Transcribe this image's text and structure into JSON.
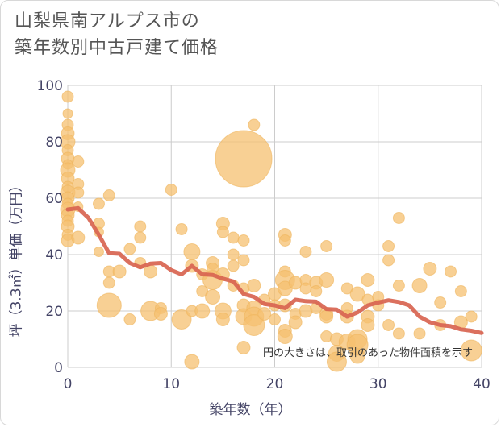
{
  "title_line1": "山梨県南アルプス市の",
  "title_line2": "築年数別中古戸建て価格",
  "chart_data": {
    "type": "scatter",
    "xlabel": "築年数（年）",
    "ylabel": "坪（3.3㎡）単価（万円）",
    "xlim": [
      0,
      40
    ],
    "ylim": [
      0,
      100
    ],
    "xticks": [
      0,
      10,
      20,
      30,
      40
    ],
    "yticks": [
      0,
      20,
      40,
      60,
      80,
      100
    ],
    "grid": true,
    "annotation": "円の大きさは、取引のあった物件面積を示す",
    "colors": {
      "points": "#f5c070",
      "trend": "#d86450",
      "grid": "#cccccc"
    },
    "points": [
      {
        "x": 0,
        "y": 96,
        "s": 7
      },
      {
        "x": 0,
        "y": 90,
        "s": 6
      },
      {
        "x": 0,
        "y": 86,
        "s": 7
      },
      {
        "x": 0,
        "y": 83,
        "s": 8
      },
      {
        "x": 0,
        "y": 80,
        "s": 9
      },
      {
        "x": 0,
        "y": 77,
        "s": 7
      },
      {
        "x": 0,
        "y": 74,
        "s": 8
      },
      {
        "x": 0,
        "y": 72,
        "s": 6
      },
      {
        "x": 0,
        "y": 70,
        "s": 9
      },
      {
        "x": 0,
        "y": 67,
        "s": 8
      },
      {
        "x": 0,
        "y": 64,
        "s": 7
      },
      {
        "x": 0,
        "y": 62,
        "s": 9
      },
      {
        "x": 0,
        "y": 60,
        "s": 8
      },
      {
        "x": 0,
        "y": 58,
        "s": 7
      },
      {
        "x": 0,
        "y": 56,
        "s": 9
      },
      {
        "x": 0,
        "y": 54,
        "s": 8
      },
      {
        "x": 0,
        "y": 52,
        "s": 7
      },
      {
        "x": 0,
        "y": 50,
        "s": 8
      },
      {
        "x": 0,
        "y": 47,
        "s": 7
      },
      {
        "x": 0,
        "y": 45,
        "s": 8
      },
      {
        "x": 1,
        "y": 73,
        "s": 7
      },
      {
        "x": 1,
        "y": 65,
        "s": 7
      },
      {
        "x": 1,
        "y": 62,
        "s": 7
      },
      {
        "x": 1,
        "y": 57,
        "s": 6
      },
      {
        "x": 1,
        "y": 46,
        "s": 8
      },
      {
        "x": 3,
        "y": 58,
        "s": 7
      },
      {
        "x": 3,
        "y": 51,
        "s": 7
      },
      {
        "x": 3,
        "y": 48,
        "s": 6
      },
      {
        "x": 3,
        "y": 41,
        "s": 6
      },
      {
        "x": 4,
        "y": 61,
        "s": 7
      },
      {
        "x": 4,
        "y": 34,
        "s": 7
      },
      {
        "x": 4,
        "y": 30,
        "s": 7
      },
      {
        "x": 4,
        "y": 22,
        "s": 15
      },
      {
        "x": 5,
        "y": 34,
        "s": 8
      },
      {
        "x": 6,
        "y": 42,
        "s": 7
      },
      {
        "x": 6,
        "y": 17,
        "s": 7
      },
      {
        "x": 7,
        "y": 50,
        "s": 7
      },
      {
        "x": 7,
        "y": 46,
        "s": 7
      },
      {
        "x": 7,
        "y": 37,
        "s": 7
      },
      {
        "x": 8,
        "y": 34,
        "s": 8
      },
      {
        "x": 8,
        "y": 20,
        "s": 12
      },
      {
        "x": 9,
        "y": 21,
        "s": 7
      },
      {
        "x": 9,
        "y": 19,
        "s": 8
      },
      {
        "x": 10,
        "y": 63,
        "s": 7
      },
      {
        "x": 11,
        "y": 49,
        "s": 7
      },
      {
        "x": 11,
        "y": 17,
        "s": 12
      },
      {
        "x": 12,
        "y": 41,
        "s": 10
      },
      {
        "x": 12,
        "y": 36,
        "s": 8
      },
      {
        "x": 12,
        "y": 20,
        "s": 7
      },
      {
        "x": 12,
        "y": 2,
        "s": 9
      },
      {
        "x": 13,
        "y": 33,
        "s": 7
      },
      {
        "x": 13,
        "y": 27,
        "s": 7
      },
      {
        "x": 13,
        "y": 20,
        "s": 9
      },
      {
        "x": 14,
        "y": 37,
        "s": 8
      },
      {
        "x": 14,
        "y": 35,
        "s": 7
      },
      {
        "x": 14,
        "y": 31,
        "s": 12
      },
      {
        "x": 14,
        "y": 25,
        "s": 9
      },
      {
        "x": 15,
        "y": 51,
        "s": 8
      },
      {
        "x": 15,
        "y": 48,
        "s": 7
      },
      {
        "x": 15,
        "y": 33,
        "s": 8
      },
      {
        "x": 15,
        "y": 20,
        "s": 10
      },
      {
        "x": 15,
        "y": 17,
        "s": 8
      },
      {
        "x": 16,
        "y": 46,
        "s": 7
      },
      {
        "x": 16,
        "y": 40,
        "s": 7
      },
      {
        "x": 16,
        "y": 36,
        "s": 7
      },
      {
        "x": 16,
        "y": 29,
        "s": 7
      },
      {
        "x": 17,
        "y": 74,
        "s": 35
      },
      {
        "x": 17,
        "y": 45,
        "s": 7
      },
      {
        "x": 17,
        "y": 38,
        "s": 7
      },
      {
        "x": 17,
        "y": 28,
        "s": 7
      },
      {
        "x": 17,
        "y": 22,
        "s": 8
      },
      {
        "x": 17,
        "y": 18,
        "s": 10
      },
      {
        "x": 17,
        "y": 7,
        "s": 8
      },
      {
        "x": 18,
        "y": 86,
        "s": 7
      },
      {
        "x": 18,
        "y": 29,
        "s": 8
      },
      {
        "x": 18,
        "y": 21,
        "s": 9
      },
      {
        "x": 18,
        "y": 18,
        "s": 12
      },
      {
        "x": 18,
        "y": 15,
        "s": 13
      },
      {
        "x": 19,
        "y": 24,
        "s": 7
      },
      {
        "x": 19,
        "y": 19,
        "s": 8
      },
      {
        "x": 20,
        "y": 26,
        "s": 8
      },
      {
        "x": 20,
        "y": 22,
        "s": 7
      },
      {
        "x": 20,
        "y": 17,
        "s": 7
      },
      {
        "x": 21,
        "y": 47,
        "s": 8
      },
      {
        "x": 21,
        "y": 45,
        "s": 7
      },
      {
        "x": 21,
        "y": 34,
        "s": 7
      },
      {
        "x": 21,
        "y": 31,
        "s": 12
      },
      {
        "x": 21,
        "y": 28,
        "s": 9
      },
      {
        "x": 21,
        "y": 22,
        "s": 8
      },
      {
        "x": 21,
        "y": 13,
        "s": 8
      },
      {
        "x": 21,
        "y": 11,
        "s": 9
      },
      {
        "x": 22,
        "y": 30,
        "s": 8
      },
      {
        "x": 22,
        "y": 19,
        "s": 7
      },
      {
        "x": 22,
        "y": 16,
        "s": 8
      },
      {
        "x": 23,
        "y": 41,
        "s": 7
      },
      {
        "x": 23,
        "y": 31,
        "s": 7
      },
      {
        "x": 23,
        "y": 28,
        "s": 7
      },
      {
        "x": 23,
        "y": 20,
        "s": 8
      },
      {
        "x": 24,
        "y": 30,
        "s": 8
      },
      {
        "x": 24,
        "y": 27,
        "s": 7
      },
      {
        "x": 24,
        "y": 21,
        "s": 7
      },
      {
        "x": 25,
        "y": 43,
        "s": 7
      },
      {
        "x": 25,
        "y": 31,
        "s": 9
      },
      {
        "x": 25,
        "y": 19,
        "s": 8
      },
      {
        "x": 25,
        "y": 18,
        "s": 8
      },
      {
        "x": 25,
        "y": 11,
        "s": 7
      },
      {
        "x": 26,
        "y": 10,
        "s": 8
      },
      {
        "x": 26,
        "y": 5,
        "s": 10
      },
      {
        "x": 26,
        "y": 2,
        "s": 12
      },
      {
        "x": 27,
        "y": 28,
        "s": 7
      },
      {
        "x": 27,
        "y": 21,
        "s": 7
      },
      {
        "x": 27,
        "y": 18,
        "s": 8
      },
      {
        "x": 27,
        "y": 9,
        "s": 10
      },
      {
        "x": 28,
        "y": 26,
        "s": 9
      },
      {
        "x": 28,
        "y": 10,
        "s": 12
      },
      {
        "x": 28,
        "y": 8,
        "s": 13
      },
      {
        "x": 28,
        "y": 4,
        "s": 9
      },
      {
        "x": 29,
        "y": 31,
        "s": 8
      },
      {
        "x": 29,
        "y": 24,
        "s": 7
      },
      {
        "x": 29,
        "y": 18,
        "s": 8
      },
      {
        "x": 29,
        "y": 15,
        "s": 8
      },
      {
        "x": 30,
        "y": 25,
        "s": 7
      },
      {
        "x": 30,
        "y": 22,
        "s": 7
      },
      {
        "x": 31,
        "y": 43,
        "s": 7
      },
      {
        "x": 31,
        "y": 38,
        "s": 7
      },
      {
        "x": 31,
        "y": 15,
        "s": 7
      },
      {
        "x": 32,
        "y": 53,
        "s": 7
      },
      {
        "x": 32,
        "y": 29,
        "s": 7
      },
      {
        "x": 32,
        "y": 12,
        "s": 7
      },
      {
        "x": 34,
        "y": 29,
        "s": 9
      },
      {
        "x": 34,
        "y": 12,
        "s": 7
      },
      {
        "x": 35,
        "y": 35,
        "s": 8
      },
      {
        "x": 36,
        "y": 23,
        "s": 7
      },
      {
        "x": 36,
        "y": 15,
        "s": 7
      },
      {
        "x": 37,
        "y": 34,
        "s": 7
      },
      {
        "x": 38,
        "y": 27,
        "s": 7
      },
      {
        "x": 38,
        "y": 16,
        "s": 8
      },
      {
        "x": 39,
        "y": 18,
        "s": 7
      },
      {
        "x": 39,
        "y": 6,
        "s": 13
      }
    ],
    "trend": {
      "x": [
        0,
        1,
        2,
        3,
        4,
        5,
        6,
        7,
        8,
        9,
        10,
        11,
        12,
        13,
        14,
        15,
        16,
        17,
        18,
        19,
        20,
        21,
        22,
        23,
        24,
        25,
        26,
        27,
        28,
        29,
        30,
        31,
        32,
        33,
        34,
        35,
        36,
        37,
        38,
        39,
        40
      ],
      "y": [
        56,
        56.5,
        53,
        47,
        40.5,
        40.3,
        37,
        35.5,
        36.8,
        37,
        34.5,
        33,
        36,
        33,
        32.8,
        31.5,
        30.5,
        26,
        25,
        22.5,
        22,
        21,
        24,
        23.5,
        23.3,
        20.7,
        20.5,
        18,
        19.5,
        22,
        23,
        23.8,
        23.2,
        22,
        18,
        16,
        15,
        14.6,
        13.5,
        13,
        12.2
      ]
    }
  }
}
